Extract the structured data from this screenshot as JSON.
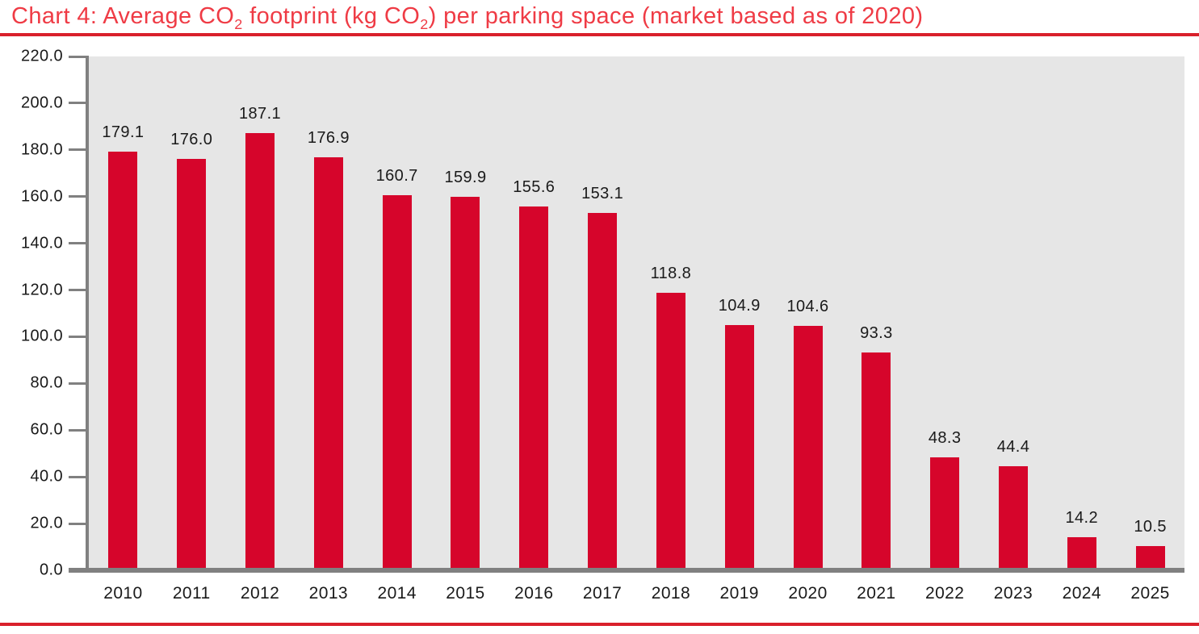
{
  "title_parts": {
    "p1": "Chart 4: Average CO",
    "sub1": "2",
    "p2": " footprint (kg CO",
    "sub2": "2",
    "p3": ") per parking space (market based as of 2020)"
  },
  "colors": {
    "bar": "#D6052B",
    "title_text": "#EF3B45",
    "rule": "#D9202B",
    "plot_bg": "#E6E6E6",
    "axis": "#808080",
    "label_text": "#1A1A1A"
  },
  "chart_data": {
    "type": "bar",
    "title": "Chart 4: Average CO2 footprint (kg CO2) per parking space (market based as of 2020)",
    "categories": [
      "2010",
      "2011",
      "2012",
      "2013",
      "2014",
      "2015",
      "2016",
      "2017",
      "2018",
      "2019",
      "2020",
      "2021",
      "2022",
      "2023",
      "2024",
      "2025"
    ],
    "values": [
      179.1,
      176.0,
      187.1,
      176.9,
      160.7,
      159.9,
      155.6,
      153.1,
      118.8,
      104.9,
      104.6,
      93.3,
      48.3,
      44.4,
      14.2,
      10.5
    ],
    "value_labels": [
      "179.1",
      "176.0",
      "187.1",
      "176.9",
      "160.7",
      "159.9",
      "155.6",
      "153.1",
      "118.8",
      "104.9",
      "104.6",
      "93.3",
      "48.3",
      "44.4",
      "14.2",
      "10.5"
    ],
    "xlabel": "",
    "ylabel": "",
    "ylim": [
      0,
      220
    ],
    "ytick_step": 20,
    "ytick_labels": [
      "0.0",
      "20.0",
      "40.0",
      "60.0",
      "80.0",
      "100.0",
      "120.0",
      "140.0",
      "160.0",
      "180.0",
      "200.0",
      "220.0"
    ],
    "grid": false,
    "legend": null
  }
}
